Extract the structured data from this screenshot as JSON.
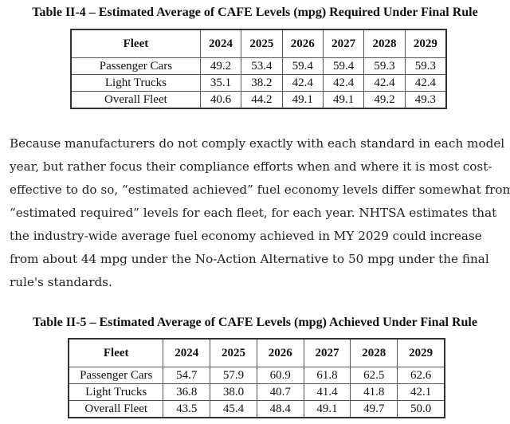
{
  "table1": {
    "caption": "Table II-4 – Estimated Average of CAFE Levels (mpg) Required Under Final Rule",
    "header": [
      "Fleet",
      "2024",
      "2025",
      "2026",
      "2027",
      "2028",
      "2029"
    ],
    "rows": [
      {
        "fleet": "Passenger Cars",
        "values": [
          "49.2",
          "53.4",
          "59.4",
          "59.4",
          "59.3",
          "59.3"
        ]
      },
      {
        "fleet": "Light Trucks",
        "values": [
          "35.1",
          "38.2",
          "42.4",
          "42.4",
          "42.4",
          "42.4"
        ]
      },
      {
        "fleet": "Overall Fleet",
        "values": [
          "40.6",
          "44.2",
          "49.1",
          "49.1",
          "49.2",
          "49.3"
        ]
      }
    ]
  },
  "paragraph": {
    "lines": [
      "Because manufacturers do not comply exactly with each standard in each model",
      "year, but rather focus their compliance efforts when and where it is most cost-",
      "effective to do so, “estimated achieved” fuel economy levels differ somewhat from",
      "“estimated required” levels for each fleet, for each year. NHTSA estimates that",
      "the industry-wide average fuel economy achieved in MY 2029 could increase",
      "from about 44 mpg under the No-Action Alternative to 50 mpg under the final",
      "rule's standards."
    ]
  },
  "table2": {
    "caption": "Table II-5 – Estimated Average of CAFE Levels (mpg) Achieved Under Final Rule",
    "header": [
      "Fleet",
      "2024",
      "2025",
      "2026",
      "2027",
      "2028",
      "2029"
    ],
    "rows": [
      {
        "fleet": "Passenger Cars",
        "values": [
          "54.7",
          "57.9",
          "60.9",
          "61.8",
          "62.5",
          "62.6"
        ]
      },
      {
        "fleet": "Light Trucks",
        "values": [
          "36.8",
          "38.0",
          "40.7",
          "41.4",
          "41.8",
          "42.1"
        ]
      },
      {
        "fleet": "Overall Fleet",
        "values": [
          "43.5",
          "45.4",
          "48.4",
          "49.1",
          "49.7",
          "50.0"
        ]
      }
    ]
  }
}
